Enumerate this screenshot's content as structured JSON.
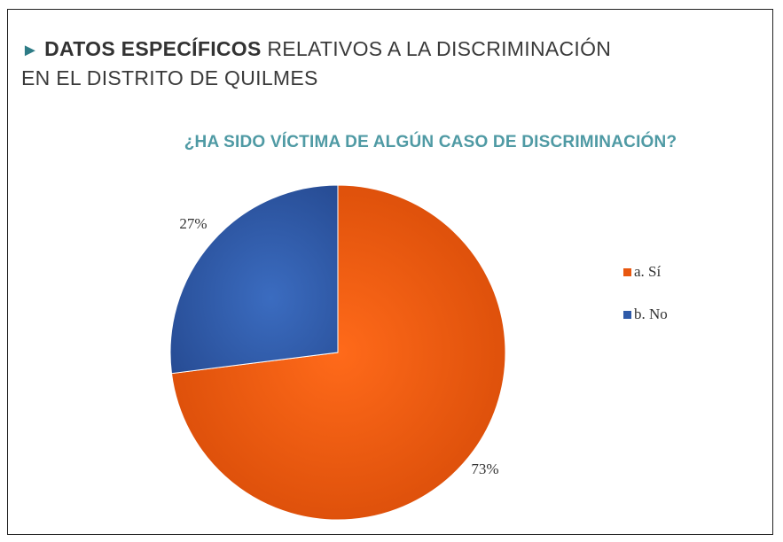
{
  "header": {
    "marker": "►",
    "title_strong": "DATOS ESPECÍFICOS",
    "title_rest": " RELATIVOS A LA DISCRIMINACIÓN",
    "title_line2": "EN EL DISTRITO DE QUILMES"
  },
  "chart_data": {
    "type": "pie",
    "title": "¿HA SIDO VÍCTIMA DE ALGÚN CASO DE DISCRIMINACIÓN?",
    "categories": [
      "a. Sí",
      "b. No"
    ],
    "values": [
      73,
      27
    ],
    "data_labels": [
      "73%",
      "27%"
    ],
    "colors": [
      "#e8570f",
      "#2f5aa8"
    ],
    "legend_position": "right"
  }
}
